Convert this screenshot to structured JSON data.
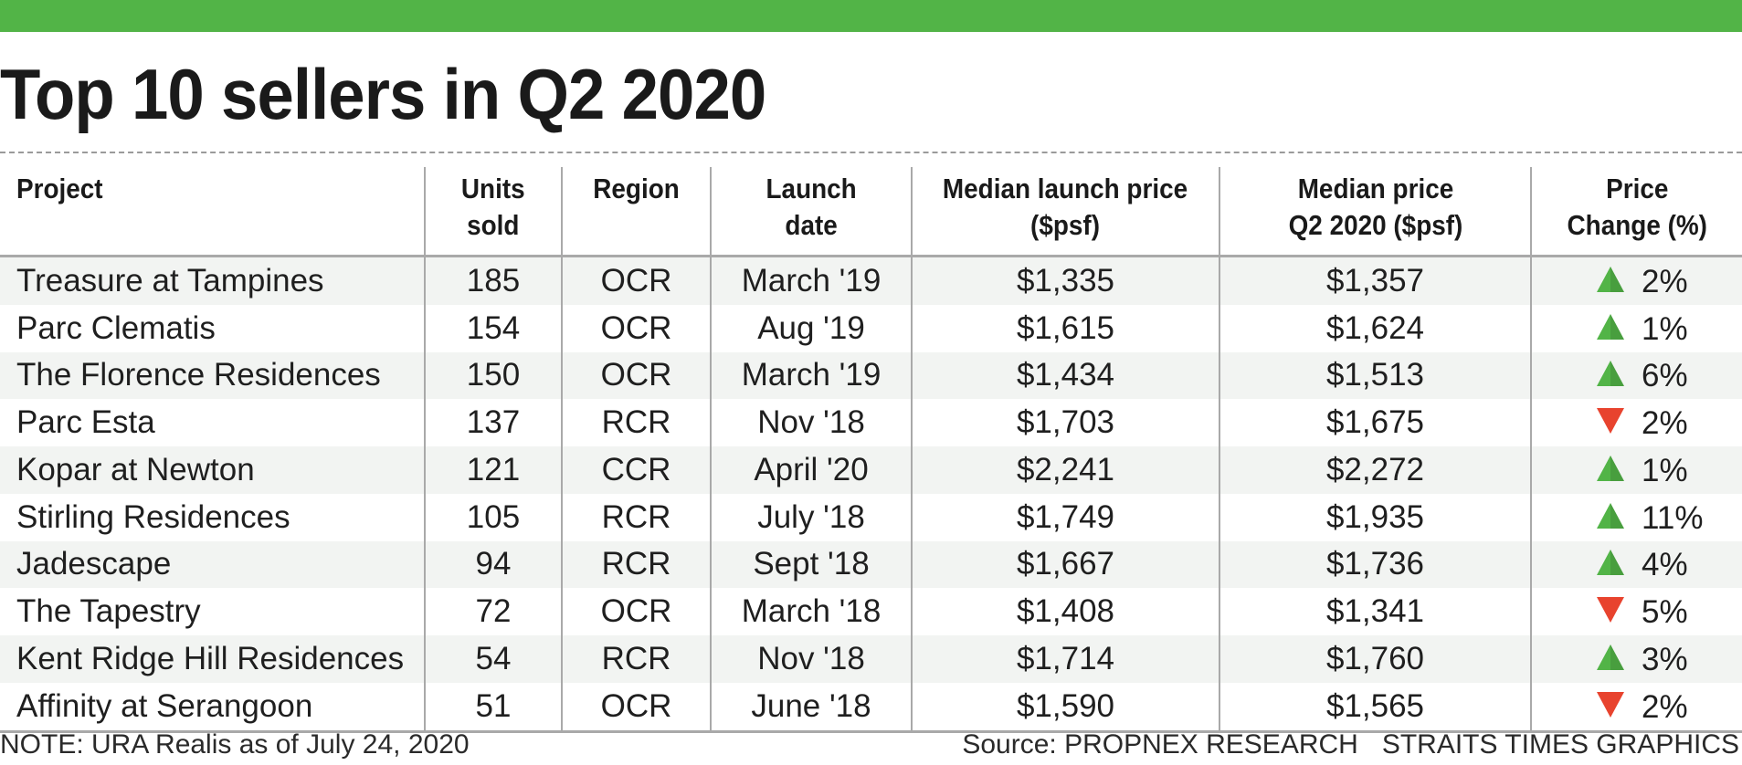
{
  "header": {
    "title": "Top 10 sellers in Q2 2020"
  },
  "colors": {
    "accent_bar": "#52b447",
    "increase": "#52b447",
    "decrease": "#e8432e"
  },
  "chart_data": {
    "type": "table",
    "title": "Top 10 sellers in Q2 2020",
    "columns": [
      "Project",
      "Units\nsold",
      "Region",
      "Launch\ndate",
      "Median launch price\n($psf)",
      "Median price\nQ2 2020 ($psf)",
      "Price\nChange (%)"
    ],
    "rows": [
      {
        "project": "Treasure at Tampines",
        "units_sold": "185",
        "region": "OCR",
        "launch_date": "March '19",
        "median_launch_price": "$1,335",
        "median_price_q2": "$1,357",
        "direction": "up",
        "change": "2%"
      },
      {
        "project": "Parc Clematis",
        "units_sold": "154",
        "region": "OCR",
        "launch_date": "Aug '19",
        "median_launch_price": "$1,615",
        "median_price_q2": "$1,624",
        "direction": "up",
        "change": "1%"
      },
      {
        "project": "The Florence Residences",
        "units_sold": "150",
        "region": "OCR",
        "launch_date": "March '19",
        "median_launch_price": "$1,434",
        "median_price_q2": "$1,513",
        "direction": "up",
        "change": "6%"
      },
      {
        "project": "Parc Esta",
        "units_sold": "137",
        "region": "RCR",
        "launch_date": "Nov '18",
        "median_launch_price": "$1,703",
        "median_price_q2": "$1,675",
        "direction": "down",
        "change": "2%"
      },
      {
        "project": "Kopar at Newton",
        "units_sold": "121",
        "region": "CCR",
        "launch_date": "April '20",
        "median_launch_price": "$2,241",
        "median_price_q2": "$2,272",
        "direction": "up",
        "change": "1%"
      },
      {
        "project": "Stirling Residences",
        "units_sold": "105",
        "region": "RCR",
        "launch_date": "July '18",
        "median_launch_price": "$1,749",
        "median_price_q2": "$1,935",
        "direction": "up",
        "change": "11%"
      },
      {
        "project": "Jadescape",
        "units_sold": "94",
        "region": "RCR",
        "launch_date": "Sept '18",
        "median_launch_price": "$1,667",
        "median_price_q2": "$1,736",
        "direction": "up",
        "change": "4%"
      },
      {
        "project": "The Tapestry",
        "units_sold": "72",
        "region": "OCR",
        "launch_date": "March '18",
        "median_launch_price": "$1,408",
        "median_price_q2": "$1,341",
        "direction": "down",
        "change": "5%"
      },
      {
        "project": "Kent Ridge Hill Residences",
        "units_sold": "54",
        "region": "RCR",
        "launch_date": "Nov '18",
        "median_launch_price": "$1,714",
        "median_price_q2": "$1,760",
        "direction": "up",
        "change": "3%"
      },
      {
        "project": "Affinity at Serangoon",
        "units_sold": "51",
        "region": "OCR",
        "launch_date": "June '18",
        "median_launch_price": "$1,590",
        "median_price_q2": "$1,565",
        "direction": "down",
        "change": "2%"
      }
    ]
  },
  "footer": {
    "note": "NOTE: URA Realis as of July 24, 2020",
    "source": "Source: PROPNEX RESEARCH",
    "credit": "STRAITS TIMES GRAPHICS"
  }
}
